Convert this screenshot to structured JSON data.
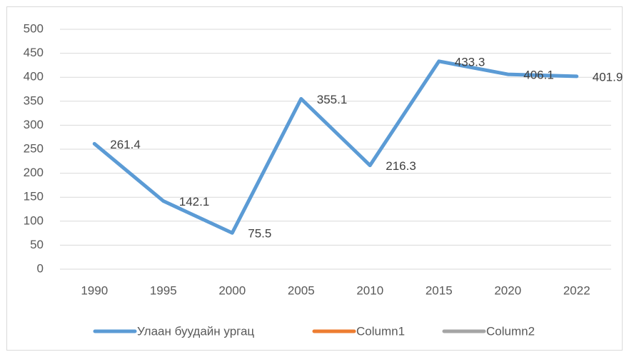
{
  "chart_data": {
    "type": "line",
    "categories": [
      "1990",
      "1995",
      "2000",
      "2005",
      "2010",
      "2015",
      "2020",
      "2022"
    ],
    "series": [
      {
        "name": "Улаан буудайн ургац",
        "color": "#5b9bd5",
        "values": [
          261.4,
          142.1,
          75.5,
          355.1,
          216.3,
          433.3,
          406.1,
          401.9
        ]
      },
      {
        "name": "Column1",
        "color": "#ed7d31",
        "values": [
          null,
          null,
          null,
          null,
          null,
          null,
          null,
          null
        ]
      },
      {
        "name": "Column2",
        "color": "#a5a5a5",
        "values": [
          null,
          null,
          null,
          null,
          null,
          null,
          null,
          null
        ]
      }
    ],
    "ylim": [
      0,
      500
    ],
    "yticks": [
      0,
      50,
      100,
      150,
      200,
      250,
      300,
      350,
      400,
      450,
      500
    ],
    "grid": true,
    "data_labels": true,
    "legend": "bottom"
  }
}
